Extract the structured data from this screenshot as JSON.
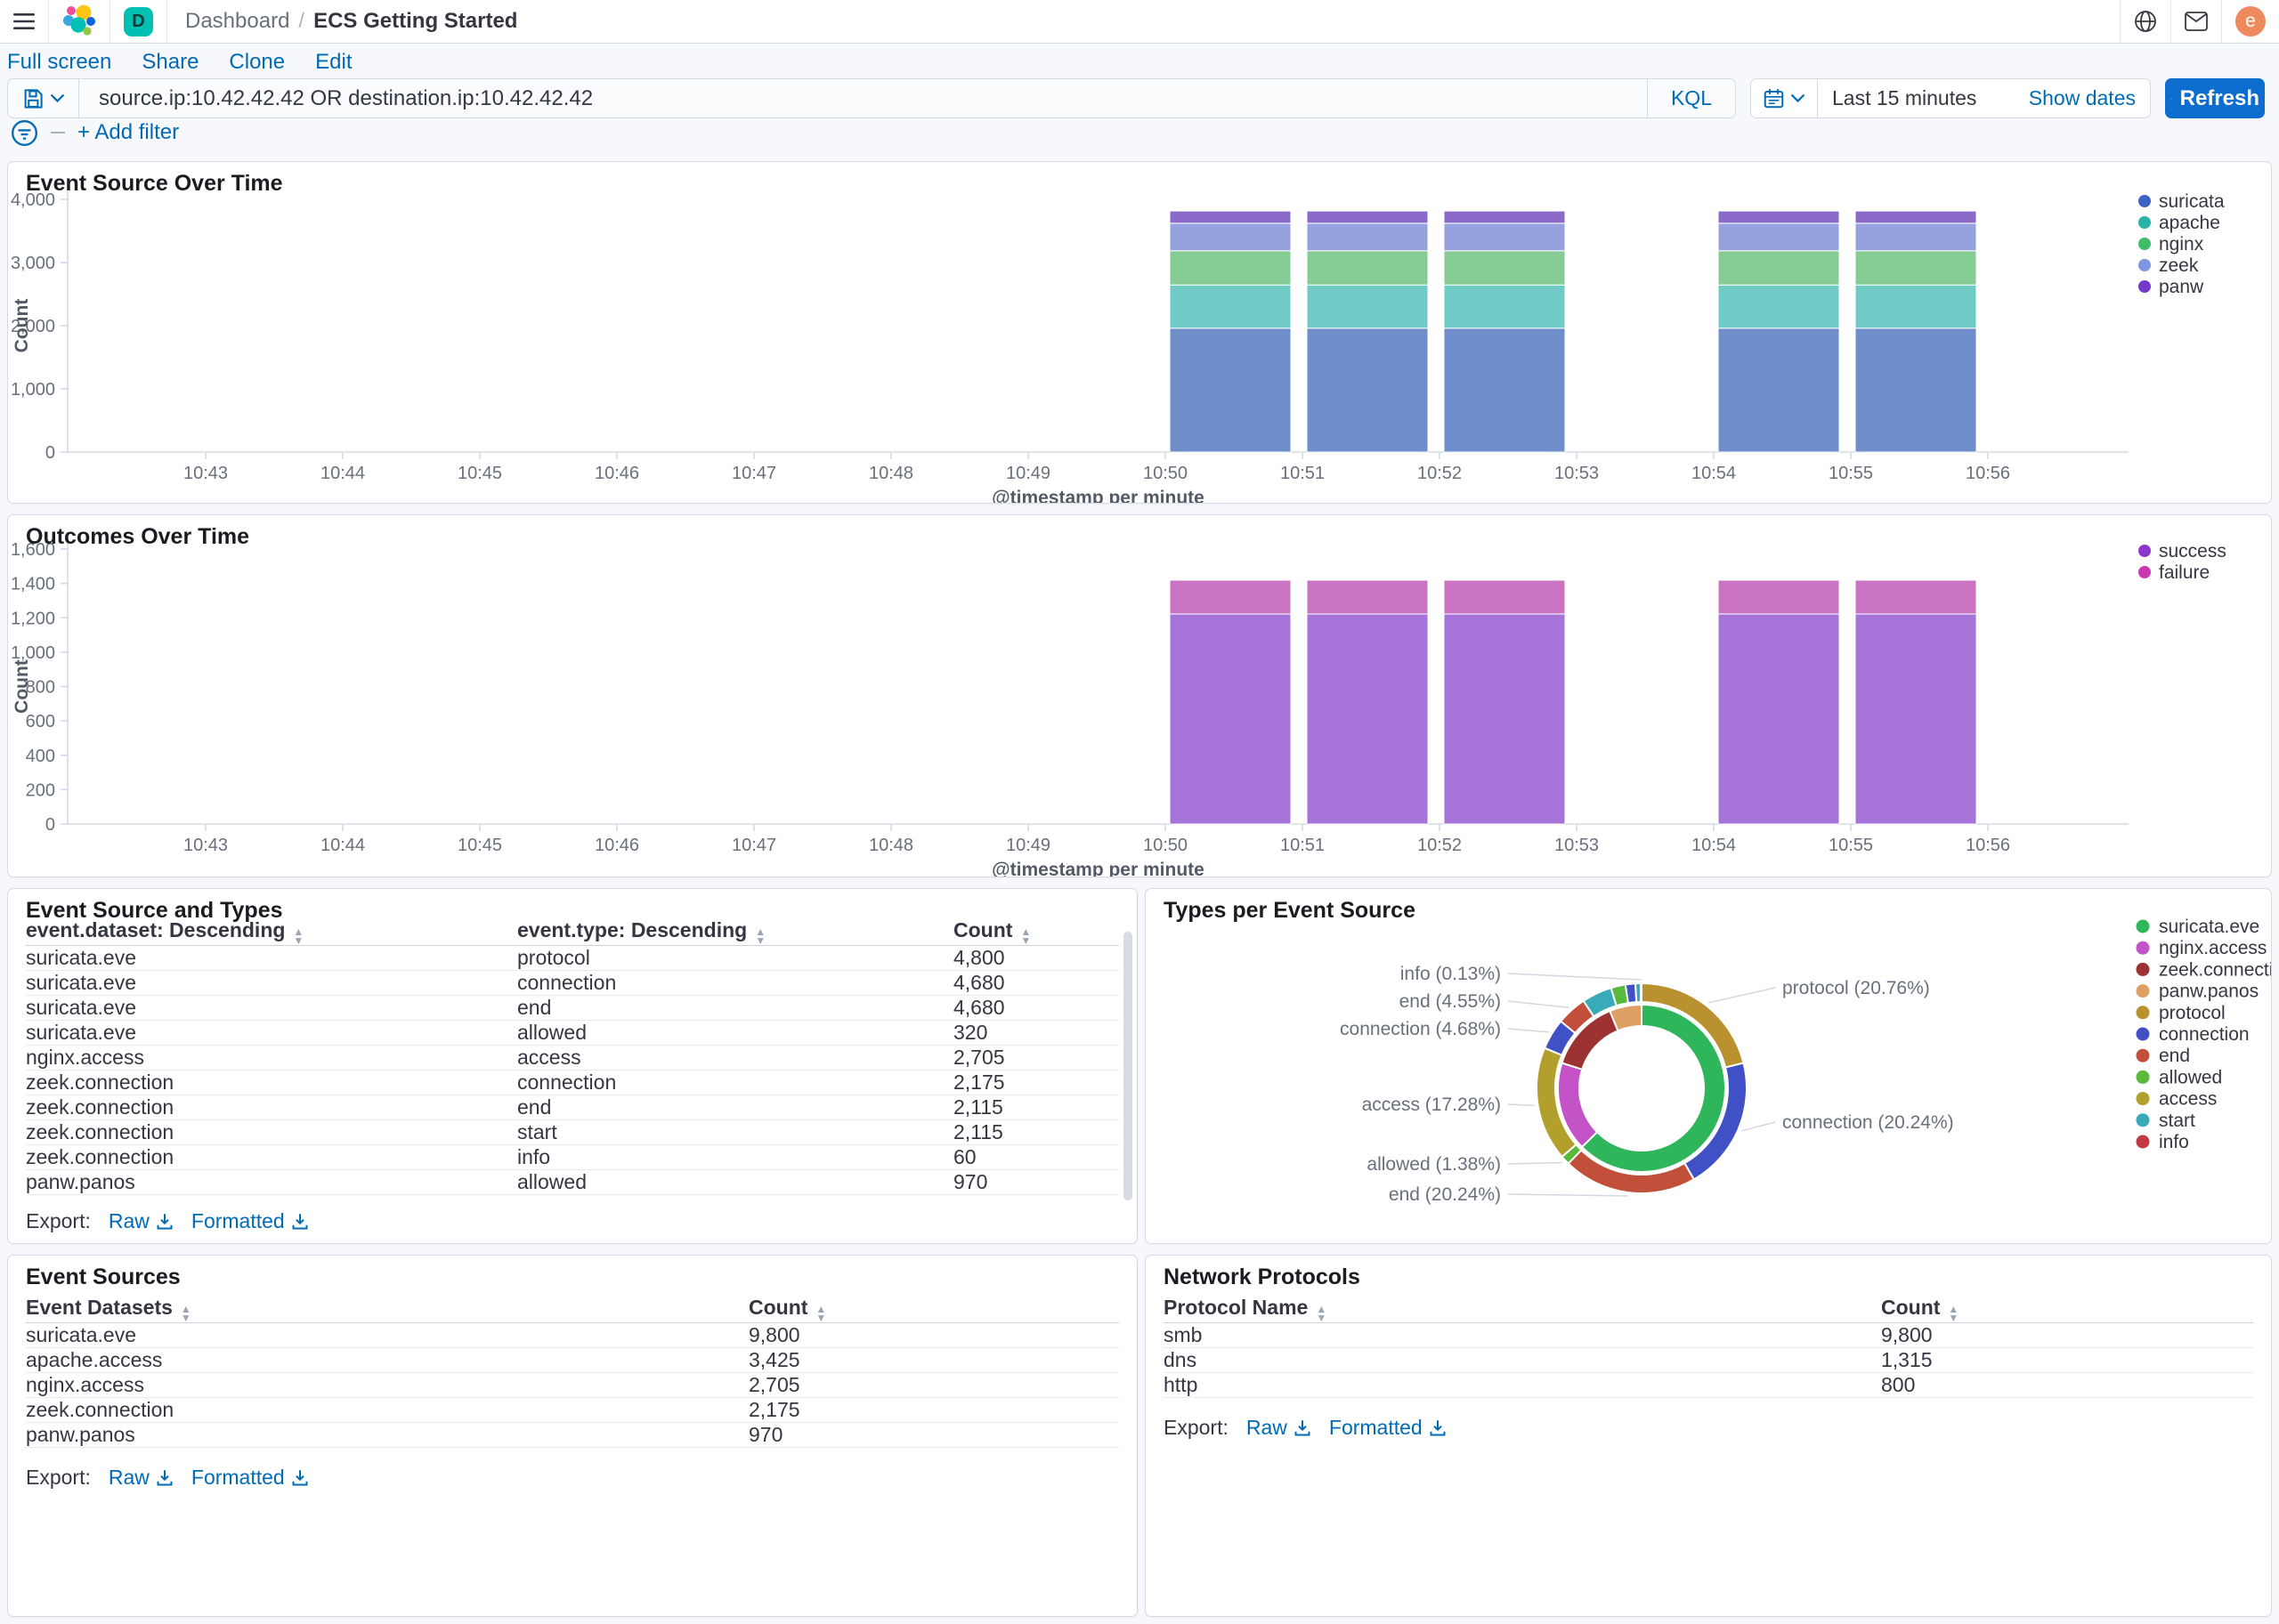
{
  "header": {
    "breadcrumb": {
      "section": "Dashboard",
      "separator": "/",
      "current": "ECS Getting Started"
    },
    "space_initial": "D",
    "user_initial": "e"
  },
  "toolbar": {
    "links": [
      "Full screen",
      "Share",
      "Clone",
      "Edit"
    ]
  },
  "query_bar": {
    "query": "source.ip:10.42.42.42 OR destination.ip:10.42.42.42",
    "language": "KQL",
    "time_range": "Last 15 minutes",
    "show_dates_label": "Show dates",
    "refresh_label": "Refresh"
  },
  "filter_bar": {
    "add_filter_label": "+ Add filter"
  },
  "colors": {
    "link_blue": "#006bb4",
    "refresh_button": "#0d6dce",
    "panel_border": "#d3dae6",
    "axis_line": "#d3dae6",
    "tick_text": "#69707d",
    "space_avatar": "#00bfb3",
    "user_avatar": "#ee8b5e"
  },
  "panels": {
    "event_source_over_time": {
      "title": "Event Source Over Time"
    },
    "outcomes_over_time": {
      "title": "Outcomes Over Time"
    },
    "event_source_and_types": {
      "title": "Event Source and Types",
      "columns": [
        "event.dataset: Descending",
        "event.type: Descending",
        "Count"
      ],
      "rows": [
        [
          "suricata.eve",
          "protocol",
          "4,800"
        ],
        [
          "suricata.eve",
          "connection",
          "4,680"
        ],
        [
          "suricata.eve",
          "end",
          "4,680"
        ],
        [
          "suricata.eve",
          "allowed",
          "320"
        ],
        [
          "nginx.access",
          "access",
          "2,705"
        ],
        [
          "zeek.connection",
          "connection",
          "2,175"
        ],
        [
          "zeek.connection",
          "end",
          "2,115"
        ],
        [
          "zeek.connection",
          "start",
          "2,115"
        ],
        [
          "zeek.connection",
          "info",
          "60"
        ],
        [
          "panw.panos",
          "allowed",
          "970"
        ]
      ],
      "export_label": "Export:",
      "raw_label": "Raw",
      "formatted_label": "Formatted"
    },
    "types_per_event_source": {
      "title": "Types per Event Source"
    },
    "event_sources": {
      "title": "Event Sources",
      "columns": [
        "Event Datasets",
        "Count"
      ],
      "rows": [
        [
          "suricata.eve",
          "9,800"
        ],
        [
          "apache.access",
          "3,425"
        ],
        [
          "nginx.access",
          "2,705"
        ],
        [
          "zeek.connection",
          "2,175"
        ],
        [
          "panw.panos",
          "970"
        ]
      ],
      "export_label": "Export:",
      "raw_label": "Raw",
      "formatted_label": "Formatted"
    },
    "network_protocols": {
      "title": "Network Protocols",
      "columns": [
        "Protocol Name",
        "Count"
      ],
      "rows": [
        [
          "smb",
          "9,800"
        ],
        [
          "dns",
          "1,315"
        ],
        [
          "http",
          "800"
        ]
      ],
      "export_label": "Export:",
      "raw_label": "Raw",
      "formatted_label": "Formatted"
    }
  },
  "chart_data": [
    {
      "type": "bar",
      "panel": "event_source_over_time",
      "title": "Event Source Over Time",
      "xlabel": "@timestamp per minute",
      "ylabel": "Count",
      "ylim": [
        0,
        4000
      ],
      "ytick_step": 1000,
      "grid": false,
      "legend_position": "right",
      "x_ticks": [
        "10:43",
        "10:44",
        "10:45",
        "10:46",
        "10:47",
        "10:48",
        "10:49",
        "10:50",
        "10:51",
        "10:52",
        "10:53",
        "10:54",
        "10:55",
        "10:56"
      ],
      "bar_categories": [
        "10:50",
        "10:51",
        "10:52",
        "10:54",
        "10:55"
      ],
      "series": [
        {
          "name": "suricata",
          "bar_color": "#6e8ecb",
          "legend_color": "#3f62c5",
          "values": [
            1960,
            1960,
            1960,
            1960,
            1960
          ]
        },
        {
          "name": "apache",
          "bar_color": "#70cbc6",
          "legend_color": "#29b3a7",
          "values": [
            685,
            685,
            685,
            685,
            685
          ]
        },
        {
          "name": "nginx",
          "bar_color": "#84cb94",
          "legend_color": "#3fbd69",
          "values": [
            541,
            541,
            541,
            541,
            541
          ]
        },
        {
          "name": "zeek",
          "bar_color": "#96a2de",
          "legend_color": "#7e96de",
          "values": [
            435,
            435,
            435,
            435,
            435
          ]
        },
        {
          "name": "panw",
          "bar_color": "#8b69c8",
          "legend_color": "#7439ca",
          "values": [
            194,
            194,
            194,
            194,
            194
          ]
        }
      ]
    },
    {
      "type": "bar",
      "panel": "outcomes_over_time",
      "title": "Outcomes Over Time",
      "xlabel": "@timestamp per minute",
      "ylabel": "Count",
      "ylim": [
        0,
        1600
      ],
      "ytick_step": 200,
      "grid": false,
      "legend_position": "right",
      "x_ticks": [
        "10:43",
        "10:44",
        "10:45",
        "10:46",
        "10:47",
        "10:48",
        "10:49",
        "10:50",
        "10:51",
        "10:52",
        "10:53",
        "10:54",
        "10:55",
        "10:56"
      ],
      "bar_categories": [
        "10:50",
        "10:51",
        "10:52",
        "10:54",
        "10:55"
      ],
      "series": [
        {
          "name": "success",
          "bar_color": "#a673d9",
          "legend_color": "#8e35cc",
          "values": [
            1222,
            1222,
            1222,
            1222,
            1222
          ]
        },
        {
          "name": "failure",
          "bar_color": "#cb74c3",
          "legend_color": "#cb39b2",
          "values": [
            197,
            197,
            197,
            197,
            197
          ]
        }
      ]
    },
    {
      "type": "pie",
      "panel": "types_per_event_source",
      "title": "Types per Event Source",
      "subtype": "sunburst",
      "inner_ring": [
        {
          "name": "suricata.eve",
          "value": 62.62,
          "color": "#2fb65b"
        },
        {
          "name": "nginx.access",
          "value": 17.28,
          "color": "#c553c8"
        },
        {
          "name": "zeek.connection",
          "value": 13.9,
          "color": "#9c3232"
        },
        {
          "name": "panw.panos",
          "value": 6.2,
          "color": "#dd9f63"
        }
      ],
      "outer_ring": [
        {
          "name": "protocol",
          "value": 20.76,
          "color": "#b9912f"
        },
        {
          "name": "connection",
          "value": 20.24,
          "color": "#3f51c5"
        },
        {
          "name": "end",
          "value": 20.24,
          "color": "#c24f39"
        },
        {
          "name": "allowed",
          "value": 1.38,
          "color": "#57ba3b"
        },
        {
          "name": "access",
          "value": 17.28,
          "color": "#b3a02c"
        },
        {
          "name": "connection",
          "value": 4.68,
          "color": "#3f51c5"
        },
        {
          "name": "end",
          "value": 4.55,
          "color": "#c24f39"
        },
        {
          "name": "start",
          "value": 4.55,
          "color": "#38aab8"
        },
        {
          "name": "allowed",
          "value": 2.2,
          "color": "#57ba3b"
        },
        {
          "name": "connection",
          "value": 1.5,
          "color": "#3f51c5"
        },
        {
          "name": "start",
          "value": 0.8,
          "color": "#38aab8"
        },
        {
          "name": "info",
          "value": 0.13,
          "color": "#c13a44"
        }
      ],
      "labels": [
        {
          "text": "protocol (20.76%)",
          "seg": 0,
          "side": "right",
          "dy": -113
        },
        {
          "text": "connection (20.24%)",
          "seg": 1,
          "side": "right",
          "dy": 38
        },
        {
          "text": "end (20.24%)",
          "seg": 2,
          "side": "left",
          "dy": 119
        },
        {
          "text": "allowed (1.38%)",
          "seg": 3,
          "side": "left",
          "dy": 85
        },
        {
          "text": "access (17.28%)",
          "seg": 4,
          "side": "left",
          "dy": 18
        },
        {
          "text": "connection (4.68%)",
          "seg": 5,
          "side": "left",
          "dy": -67
        },
        {
          "text": "end (4.55%)",
          "seg": 6,
          "side": "left",
          "dy": -98
        },
        {
          "text": "info (0.13%)",
          "seg": 11,
          "side": "left",
          "dy": -129
        }
      ],
      "legend": [
        {
          "name": "suricata.eve",
          "color": "#2fb65b"
        },
        {
          "name": "nginx.access",
          "color": "#c553c8"
        },
        {
          "name": "zeek.connection",
          "color": "#9c3232"
        },
        {
          "name": "panw.panos",
          "color": "#dd9f63"
        },
        {
          "name": "protocol",
          "color": "#b9912f"
        },
        {
          "name": "connection",
          "color": "#3f51c5"
        },
        {
          "name": "end",
          "color": "#c24f39"
        },
        {
          "name": "allowed",
          "color": "#57ba3b"
        },
        {
          "name": "access",
          "color": "#b3a02c"
        },
        {
          "name": "start",
          "color": "#38aab8"
        },
        {
          "name": "info",
          "color": "#c13a44"
        }
      ]
    }
  ]
}
